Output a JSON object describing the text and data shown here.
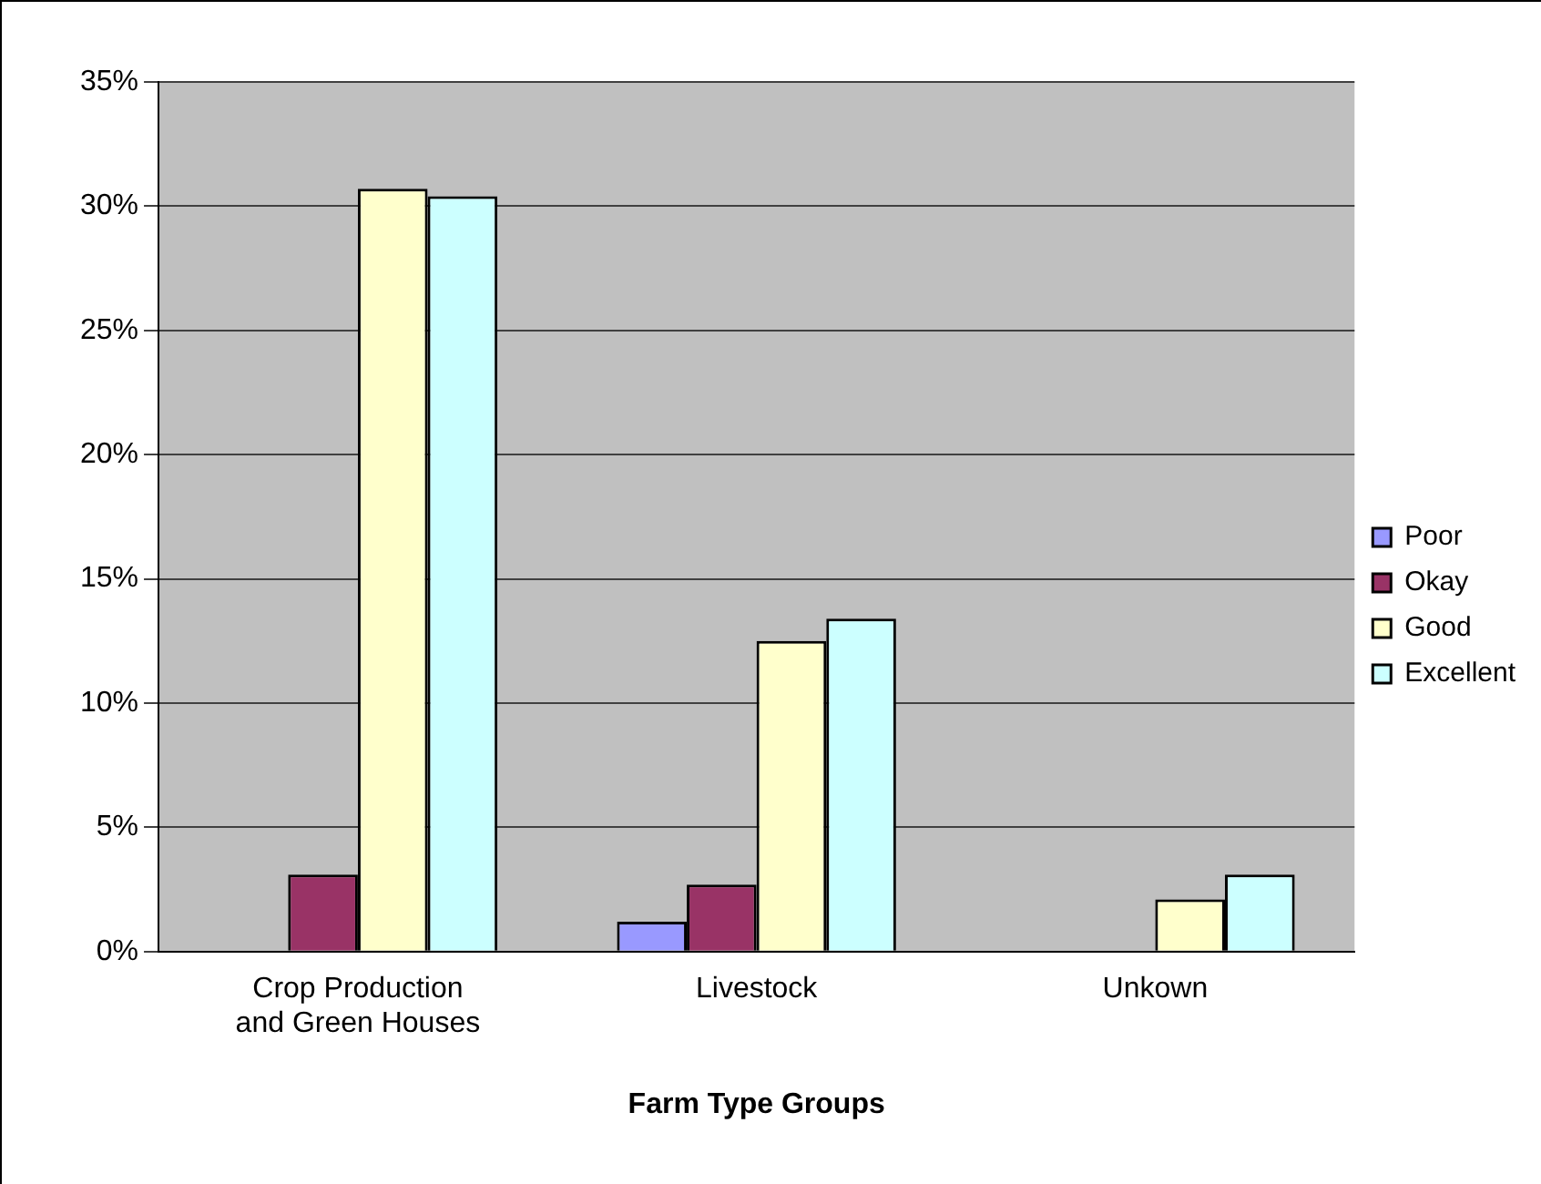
{
  "chart_data": {
    "type": "bar",
    "xlabel": "Farm Type Groups",
    "categories": [
      "Crop Production and Green Houses",
      "Livestock",
      "Unkown"
    ],
    "series": [
      {
        "name": "Poor",
        "color": "#9999ff",
        "values": [
          0,
          1.2,
          0
        ]
      },
      {
        "name": "Okay",
        "color": "#993366",
        "values": [
          3.1,
          2.7,
          0
        ]
      },
      {
        "name": "Good",
        "color": "#ffffcc",
        "values": [
          30.7,
          12.5,
          2.1
        ]
      },
      {
        "name": "Excellent",
        "color": "#ccffff",
        "values": [
          30.4,
          13.4,
          3.1
        ]
      }
    ],
    "ylim": [
      0,
      35
    ],
    "yticks": [
      {
        "value": 0,
        "label": "0%"
      },
      {
        "value": 5,
        "label": "5%"
      },
      {
        "value": 10,
        "label": "10%"
      },
      {
        "value": 15,
        "label": "15%"
      },
      {
        "value": 20,
        "label": "20%"
      },
      {
        "value": 25,
        "label": "25%"
      },
      {
        "value": 30,
        "label": "30%"
      },
      {
        "value": 35,
        "label": "35%"
      }
    ],
    "grid": "y",
    "legend": "right"
  }
}
